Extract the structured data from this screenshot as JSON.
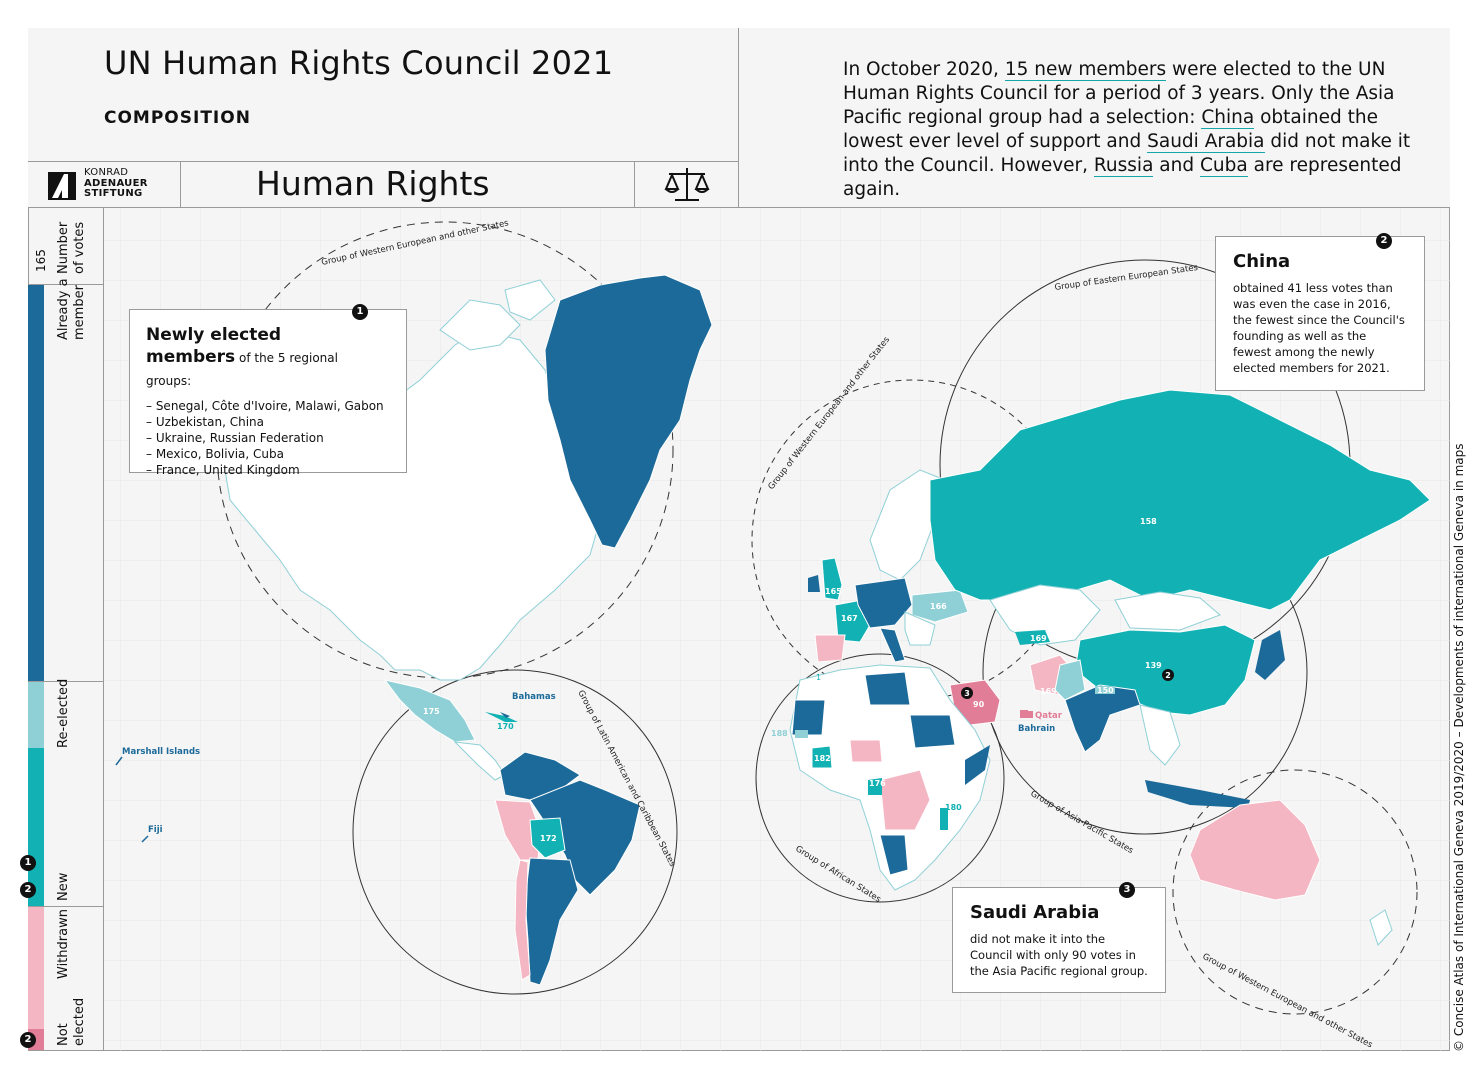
{
  "header": {
    "title": "UN Human Rights Council 2021",
    "subtitle": "COMPOSITION",
    "topic": "Human Rights",
    "logo_lines": [
      "KONRAD",
      "ADENAUER",
      "STIFTUNG"
    ],
    "scales_icon": "scales-of-justice-icon"
  },
  "intro": {
    "p1": "In October 2020, ",
    "link1": "15 new members",
    "p2": " were elected to the UN Human Rights Council for a period of 3 years. Only the Asia Pacific regional group had a selection: ",
    "link2": "China",
    "p3": " obtained the lowest ever level of support and ",
    "link3": "Saudi Arabia",
    "p4": " did not make it into the Council. However, ",
    "link4": "Russia",
    "p5": " and ",
    "link5": "Cuba",
    "p6": " are represented again."
  },
  "legend": {
    "votes_number": "165",
    "votes_label": "Number of votes",
    "items": [
      {
        "label": "Already a member",
        "color": "#1c6a99"
      },
      {
        "label": "Re-elected",
        "color": "#8fd0d6"
      },
      {
        "label": "New",
        "color": "#12b2b4"
      },
      {
        "label": "Withdrawn",
        "color": "#f4b6c2"
      },
      {
        "label": "Not elected",
        "color": "#e27d97"
      }
    ],
    "badges": [
      "1",
      "2",
      "2"
    ]
  },
  "colors": {
    "member": "#1c6a99",
    "reelected": "#8fd0d6",
    "new": "#12b2b4",
    "withdrawn": "#f4b6c2",
    "not_elected": "#e27d97",
    "land": "#ffffff",
    "border": "#8fd0d6"
  },
  "boxes": {
    "newly": {
      "badge": "1",
      "title": "Newly elected members",
      "suffix": " of the 5 regional groups:",
      "items": [
        "– Senegal, Côte d'Ivoire, Malawi, Gabon",
        "– Uzbekistan, China",
        "– Ukraine, Russian Federation",
        "– Mexico, Bolivia, Cuba",
        "– France, United Kingdom"
      ]
    },
    "china": {
      "badge": "2",
      "title": "China",
      "text": "obtained 41 less votes than was even the case in 2016, the fewest since the Council's founding as well as the fewest among the newly elected members for 2021."
    },
    "saudi": {
      "badge": "3",
      "title": "Saudi Arabia",
      "text": "did not make it into the Council with only 90 votes in the Asia Pacific regional group."
    }
  },
  "groups": {
    "weog_north": "Group of Western European and other States",
    "weog_europe": "Group of Western European and other States",
    "eeg": "Group of Eastern European States",
    "grulac": "Group of Latin American and Caribbean States",
    "african": "Group of African States",
    "asia": "Group of Asia-Pacific States",
    "weog_oceania": "Group of Western European and other States"
  },
  "vote_labels": [
    {
      "label": "158",
      "country": "Russia"
    },
    {
      "label": "166",
      "country": "Ukraine"
    },
    {
      "label": "165",
      "country": "United Kingdom"
    },
    {
      "label": "167",
      "country": "France"
    },
    {
      "label": "169",
      "country": "Uzbekistan"
    },
    {
      "label": "169",
      "country": "Pakistan"
    },
    {
      "label": "150",
      "country": "Nepal"
    },
    {
      "label": "139",
      "country": "China"
    },
    {
      "label": "90",
      "country": "Saudi Arabia"
    },
    {
      "label": "175",
      "country": "Mexico"
    },
    {
      "label": "170",
      "country": "Cuba"
    },
    {
      "label": "172",
      "country": "Bolivia"
    },
    {
      "label": "188",
      "country": "Senegal"
    },
    {
      "label": "182",
      "country": "Côte d'Ivoire"
    },
    {
      "label": "176",
      "country": "Gabon"
    },
    {
      "label": "180",
      "country": "Malawi"
    },
    {
      "label": "1",
      "country": "Mauritania"
    }
  ],
  "place_labels": {
    "bahamas": "Bahamas",
    "marshall": "Marshall Islands",
    "fiji": "Fiji",
    "qatar": "Qatar",
    "bahrain": "Bahrain"
  },
  "credit": "© Concise Atlas of International Geneva 2019/2020 – Developments of international Geneva in maps"
}
